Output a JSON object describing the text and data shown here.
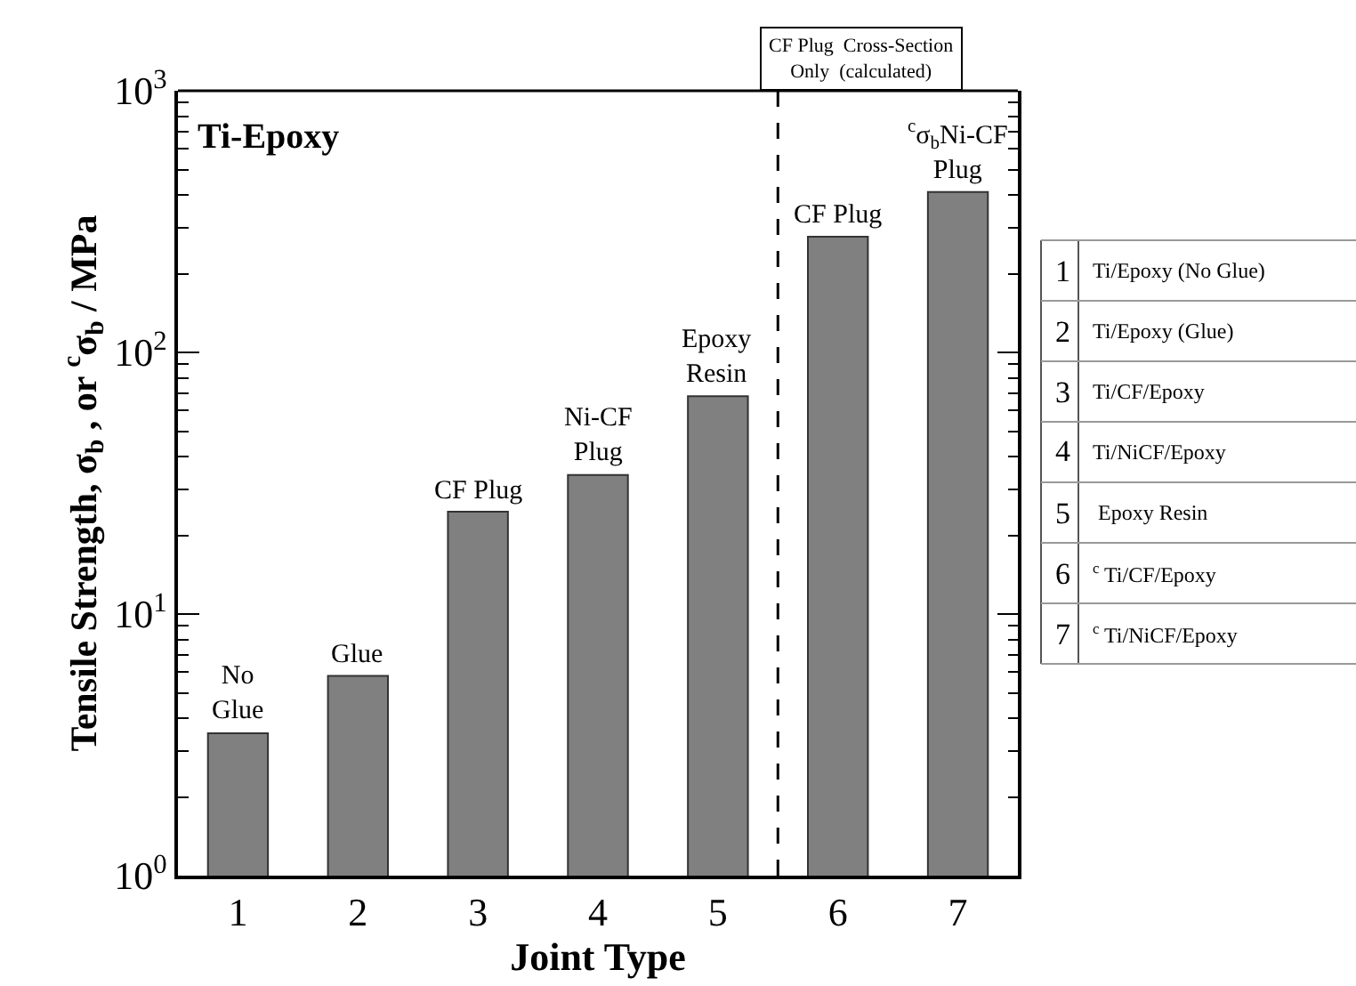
{
  "chart_data": {
    "type": "bar",
    "title": "Ti-Epoxy",
    "xlabel": "Joint Type",
    "ylabel": "Tensile Strength, σ$_{b}$ , or $^{c}$σ$_{b}$ / MPa",
    "x": [
      1,
      2,
      3,
      4,
      5,
      6,
      7
    ],
    "values": [
      3.5,
      5.8,
      24.6,
      34,
      68,
      277,
      410
    ],
    "color": "#808080",
    "log": "y",
    "xlim": [
      0.5,
      7.5
    ],
    "xticks": [
      1,
      2,
      3,
      4,
      5,
      6,
      7
    ],
    "ylim": [
      1,
      1000
    ],
    "yticks": [
      {
        "value": 1,
        "label": "10$^{0}$"
      },
      {
        "value": 10,
        "label": "10$^{1}$"
      },
      {
        "value": 100,
        "label": "10$^{2}$"
      },
      {
        "value": 1000,
        "label": "10$^{3}$"
      }
    ],
    "ref_lines": [
      {
        "axis": "x",
        "value": 5.5,
        "label": "CF Plug  Cross-Section\nOnly  (calculated)",
        "line_style": "dashed",
        "color": "#000000"
      }
    ],
    "annotations": [
      {
        "text": "No\nGlue",
        "x": 1,
        "y": 3.5
      },
      {
        "text": "Glue",
        "x": 2,
        "y": 5.8
      },
      {
        "text": "CF Plug",
        "x": 3,
        "y": 24.6
      },
      {
        "text": "Ni-CF\nPlug",
        "x": 4,
        "y": 34
      },
      {
        "text": "Epoxy\nResin",
        "x": 5,
        "y": 68
      },
      {
        "text": "CF Plug",
        "x": 6,
        "y": 277
      },
      {
        "text": "$^{c}$σ$_{b}$Ni-CF\nPlug",
        "x": 7,
        "y": 410
      },
      "1",
      "Ti/Epoxy (No Glue)",
      "2",
      "Ti/Epoxy (Glue)",
      "3",
      "Ti/CF/Epoxy",
      "4",
      "Ti/NiCF/Epoxy",
      "5",
      " Epoxy Resin",
      "6",
      "$^{c}$ Ti/CF/Epoxy",
      "7",
      "$^{c}$ Ti/NiCF/Epoxy"
    ]
  }
}
